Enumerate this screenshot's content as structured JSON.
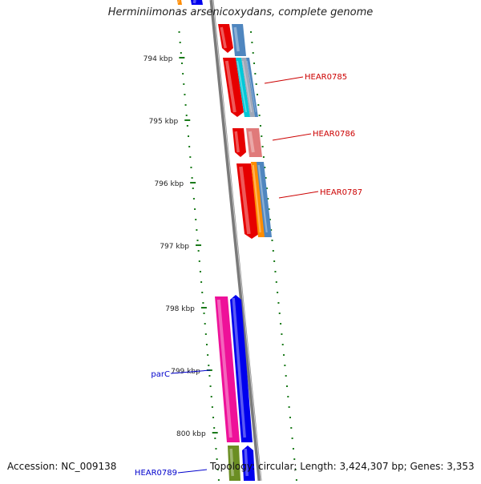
{
  "title": "Herminiimonas arsenicoxydans, complete genome",
  "accession": "Accession: NC_009138",
  "topology": "Topology: circular; Length: 3,424,307 bp; Genes: 3,353",
  "ruler": {
    "ticks": [
      {
        "label": "794 kbp"
      },
      {
        "label": "795 kbp"
      },
      {
        "label": "796 kbp"
      },
      {
        "label": "797 kbp"
      },
      {
        "label": "798 kbp"
      },
      {
        "label": "799 kbp"
      },
      {
        "label": "800 kbp"
      }
    ]
  },
  "gene_labels": [
    {
      "text": "HEAR0785",
      "color": "#cc0000"
    },
    {
      "text": "HEAR0786",
      "color": "#cc0000"
    },
    {
      "text": "HEAR0787",
      "color": "#cc0000"
    },
    {
      "text": "parC",
      "color": "#0000cc"
    },
    {
      "text": "HEAR0789",
      "color": "#0000cc"
    }
  ],
  "colors": {
    "backbone": "#7a7a7a",
    "tick_green": "#1a7a1a",
    "red": "#e60000",
    "steelblue": "#4f86bf",
    "cyan": "#00c8d8",
    "grey": "#a0a8b8",
    "salmon": "#e07a7a",
    "orange": "#ff8c00",
    "magenta": "#ee1199",
    "blue": "#0000ee",
    "olive": "#6b8e23"
  }
}
